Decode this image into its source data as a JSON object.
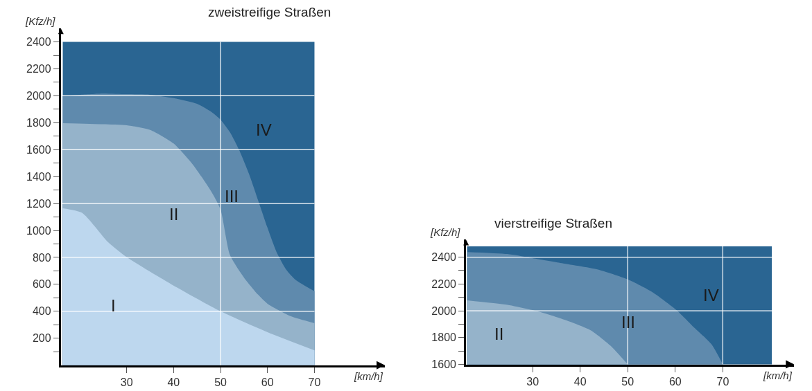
{
  "chart_data": [
    {
      "type": "area",
      "title": "zweistreifige Straßen",
      "xlabel": "[km/h]",
      "ylabel": "[Kfz/h]",
      "xlim": [
        16,
        85
      ],
      "xticks": [
        30,
        40,
        50,
        60,
        70
      ],
      "ylim": [
        0,
        2500
      ],
      "yticks": [
        {
          "value": 100,
          "label": null
        },
        200,
        {
          "value": 300,
          "label": null
        },
        400,
        {
          "value": 500,
          "label": null
        },
        600,
        {
          "value": 700,
          "label": null
        },
        800,
        {
          "value": 900,
          "label": null
        },
        1000,
        {
          "value": 1100,
          "label": null
        },
        1200,
        {
          "value": 1300,
          "label": null
        },
        1400,
        {
          "value": 1500,
          "label": null
        },
        1600,
        {
          "value": 1700,
          "label": null
        },
        1800,
        {
          "value": 1900,
          "label": null
        },
        2000,
        {
          "value": 2100,
          "label": null
        },
        2200,
        {
          "value": 2300,
          "label": null
        },
        2400
      ],
      "ref_lines": [
        {
          "axis": "x",
          "value": 50,
          "color": "#ffffff"
        },
        {
          "axis": "y",
          "value": 400,
          "color": "#ffffff"
        },
        {
          "axis": "y",
          "value": 800,
          "color": "#ffffff"
        },
        {
          "axis": "y",
          "value": 1200,
          "color": "#ffffff"
        },
        {
          "axis": "y",
          "value": 1600,
          "color": "#ffffff"
        },
        {
          "axis": "y",
          "value": 2000,
          "color": "#ffffff"
        }
      ],
      "series": [
        {
          "name": "IV",
          "color": "#2a6592",
          "x": [
            16.4,
            70
          ],
          "values": [
            2400,
            2400
          ]
        },
        {
          "name": "III",
          "color": "#5f8aad",
          "x": [
            16.4,
            20,
            25,
            30,
            35,
            40,
            45,
            48,
            50,
            52,
            54,
            56,
            58,
            60,
            62,
            64,
            66,
            70
          ],
          "values": [
            2000,
            2008,
            2017,
            2012,
            2008,
            1983,
            1941,
            1882,
            1823,
            1730,
            1595,
            1426,
            1224,
            1021,
            835,
            709,
            633,
            549
          ]
        },
        {
          "name": "II",
          "color": "#95b3ca",
          "x": [
            16.4,
            25,
            30,
            35,
            40,
            44,
            48,
            50,
            52,
            55,
            58,
            60,
            65,
            70
          ],
          "values": [
            1797,
            1789,
            1781,
            1747,
            1646,
            1494,
            1291,
            1156,
            819,
            650,
            523,
            456,
            363,
            312
          ]
        },
        {
          "name": "I",
          "color": "#bdd7ee",
          "x": [
            16.4,
            20.5,
            26.1,
            30,
            40,
            50,
            60,
            70
          ],
          "values": [
            1165,
            1131,
            911,
            802,
            591,
            400,
            245,
            110
          ]
        }
      ]
    },
    {
      "type": "area",
      "title": "vierstreifige Straßen",
      "xlabel": "[km/h]",
      "ylabel": "[Kfz/h]",
      "xlim": [
        16,
        85
      ],
      "xticks": [
        30,
        40,
        50,
        60,
        70
      ],
      "ylim": [
        1600,
        2530
      ],
      "yticks": [
        1600,
        {
          "value": 1700,
          "label": null
        },
        1800,
        {
          "value": 1900,
          "label": null
        },
        2000,
        {
          "value": 2100,
          "label": null
        },
        2200,
        {
          "value": 2300,
          "label": null
        },
        2400
      ],
      "ref_lines": [
        {
          "axis": "x",
          "value": 50,
          "color": "#ffffff"
        },
        {
          "axis": "x",
          "value": 70,
          "color": "#ffffff"
        },
        {
          "axis": "y",
          "value": 2000,
          "color": "#ffffff"
        },
        {
          "axis": "y",
          "value": 2400,
          "color": "#ffffff"
        }
      ],
      "series": [
        {
          "name": "IV",
          "color": "#2a6592",
          "x": [
            16.2,
            80.3
          ],
          "values": [
            2480,
            2480
          ]
        },
        {
          "name": "III",
          "color": "#5f8aad",
          "x": [
            16.2,
            24.7,
            29.7,
            35.8,
            43.6,
            50,
            55.2,
            60.2,
            64,
            67.6,
            70
          ],
          "values": [
            2438,
            2423,
            2394,
            2357,
            2309,
            2234,
            2139,
            2007,
            1874,
            1751,
            1600
          ]
        },
        {
          "name": "II",
          "color": "#95b3ca",
          "x": [
            16.2,
            24.7,
            31.9,
            36.9,
            42.2,
            46.3,
            50
          ],
          "values": [
            2078,
            2044,
            1988,
            1931,
            1855,
            1742,
            1600
          ]
        }
      ]
    }
  ]
}
